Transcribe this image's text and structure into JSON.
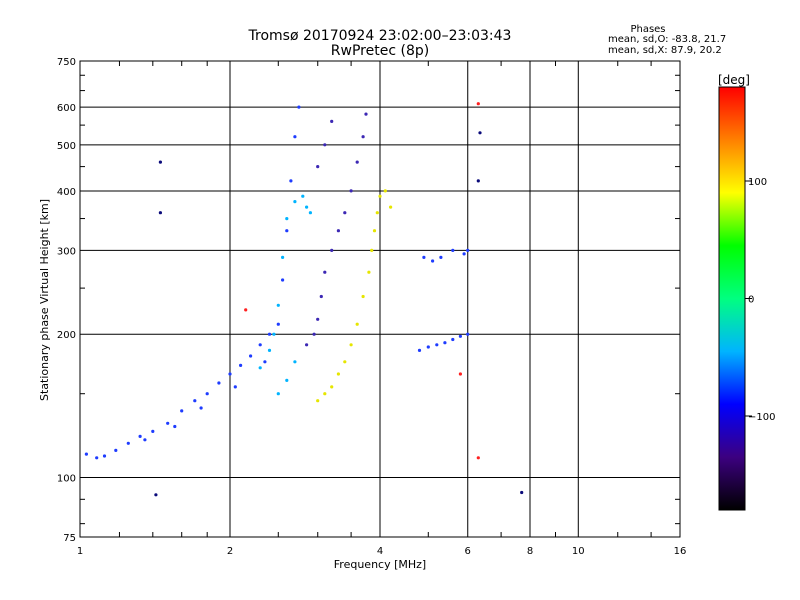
{
  "chart_data": {
    "type": "scatter",
    "title": "Tromsø 20170924 23:02:00–23:03:43",
    "subtitle": "RwPretec (8p)",
    "xlabel": "Frequency [MHz]",
    "ylabel": "Stationary phase Virtual Height [km]",
    "x_scale": "log2",
    "y_scale": "log",
    "xlim": [
      1,
      16
    ],
    "ylim": [
      75,
      750
    ],
    "x_ticks": [
      1,
      2,
      4,
      6,
      8,
      10,
      16
    ],
    "x_tick_labels": [
      "1",
      "2",
      "4",
      "6",
      "8",
      "10",
      "16"
    ],
    "x_grid": [
      2,
      4,
      6,
      8,
      10
    ],
    "y_ticks": [
      75,
      100,
      200,
      300,
      400,
      500,
      600,
      750
    ],
    "y_tick_labels": [
      "75",
      "100",
      "200",
      "300",
      "400",
      "500",
      "600",
      "750"
    ],
    "y_grid": [
      100,
      200,
      300,
      400,
      500,
      600
    ],
    "grid": true,
    "stats": {
      "title": "Phases",
      "line_o": "mean, sd,O: -83.8, 21.7",
      "line_x": "mean, sd,X: 87.9, 20.2"
    },
    "colorbar": {
      "label": "[deg]",
      "range": [
        -180,
        180
      ],
      "ticks": [
        100,
        0,
        -100
      ],
      "tick_labels": [
        "100",
        "0",
        "−100"
      ],
      "stops": [
        "#000000",
        "#3c0080",
        "#0000ff",
        "#00b4ff",
        "#00ff80",
        "#00ff00",
        "#ffff00",
        "#ff8000",
        "#ff0000"
      ],
      "position": "right"
    },
    "series": [
      {
        "color_group": "o-mode-blue",
        "color": "#1e3cff",
        "points": [
          [
            1.03,
            112
          ],
          [
            1.08,
            110
          ],
          [
            1.12,
            111
          ],
          [
            1.18,
            114
          ],
          [
            1.25,
            118
          ],
          [
            1.32,
            122
          ],
          [
            1.4,
            125
          ],
          [
            1.5,
            130
          ],
          [
            1.6,
            138
          ],
          [
            1.7,
            145
          ],
          [
            1.8,
            150
          ],
          [
            1.9,
            158
          ],
          [
            2.0,
            165
          ],
          [
            2.1,
            172
          ],
          [
            2.2,
            180
          ],
          [
            2.3,
            190
          ],
          [
            2.4,
            200
          ],
          [
            2.5,
            210
          ],
          [
            2.55,
            260
          ],
          [
            2.6,
            330
          ],
          [
            2.65,
            420
          ],
          [
            2.7,
            520
          ],
          [
            2.75,
            600
          ],
          [
            1.35,
            120
          ],
          [
            1.55,
            128
          ],
          [
            1.75,
            140
          ],
          [
            2.05,
            155
          ],
          [
            2.35,
            175
          ]
        ]
      },
      {
        "color_group": "o-mode-cyan",
        "color": "#00b4ff",
        "points": [
          [
            2.3,
            170
          ],
          [
            2.4,
            185
          ],
          [
            2.45,
            200
          ],
          [
            2.5,
            230
          ],
          [
            2.55,
            290
          ],
          [
            2.6,
            350
          ],
          [
            2.7,
            380
          ],
          [
            2.8,
            390
          ],
          [
            2.85,
            370
          ],
          [
            2.9,
            360
          ],
          [
            2.5,
            150
          ],
          [
            2.6,
            160
          ],
          [
            2.7,
            175
          ]
        ]
      },
      {
        "color_group": "o-mode-purple",
        "color": "#3c28b4",
        "points": [
          [
            2.85,
            190
          ],
          [
            2.95,
            200
          ],
          [
            3.0,
            215
          ],
          [
            3.05,
            240
          ],
          [
            3.1,
            270
          ],
          [
            3.2,
            300
          ],
          [
            3.3,
            330
          ],
          [
            3.4,
            360
          ],
          [
            3.5,
            400
          ],
          [
            3.6,
            460
          ],
          [
            3.7,
            520
          ],
          [
            3.75,
            580
          ],
          [
            3.0,
            450
          ],
          [
            3.1,
            500
          ],
          [
            3.2,
            560
          ]
        ]
      },
      {
        "color_group": "x-mode-yellow",
        "color": "#e6e600",
        "points": [
          [
            3.0,
            145
          ],
          [
            3.1,
            150
          ],
          [
            3.2,
            155
          ],
          [
            3.3,
            165
          ],
          [
            3.4,
            175
          ],
          [
            3.5,
            190
          ],
          [
            3.6,
            210
          ],
          [
            3.7,
            240
          ],
          [
            3.8,
            270
          ],
          [
            3.85,
            300
          ],
          [
            3.9,
            330
          ],
          [
            3.95,
            360
          ],
          [
            4.0,
            390
          ],
          [
            4.1,
            400
          ],
          [
            4.2,
            370
          ]
        ]
      },
      {
        "color_group": "far-trace-blue",
        "color": "#1e3cff",
        "points": [
          [
            4.8,
            185
          ],
          [
            5.0,
            188
          ],
          [
            5.2,
            190
          ],
          [
            5.4,
            192
          ],
          [
            5.6,
            195
          ],
          [
            5.8,
            198
          ],
          [
            6.0,
            200
          ],
          [
            4.9,
            290
          ],
          [
            5.1,
            285
          ],
          [
            5.3,
            290
          ],
          [
            5.6,
            300
          ],
          [
            5.9,
            295
          ],
          [
            6.0,
            300
          ]
        ]
      },
      {
        "color_group": "sparse-red",
        "color": "#ff2020",
        "points": [
          [
            6.3,
            610
          ],
          [
            6.3,
            110
          ],
          [
            5.8,
            165
          ],
          [
            2.15,
            225
          ]
        ]
      },
      {
        "color_group": "sparse-navy",
        "color": "#0a0a7a",
        "points": [
          [
            1.42,
            92
          ],
          [
            7.7,
            93
          ],
          [
            6.35,
            530
          ],
          [
            6.3,
            420
          ],
          [
            1.45,
            360
          ],
          [
            1.45,
            460
          ]
        ]
      }
    ]
  }
}
